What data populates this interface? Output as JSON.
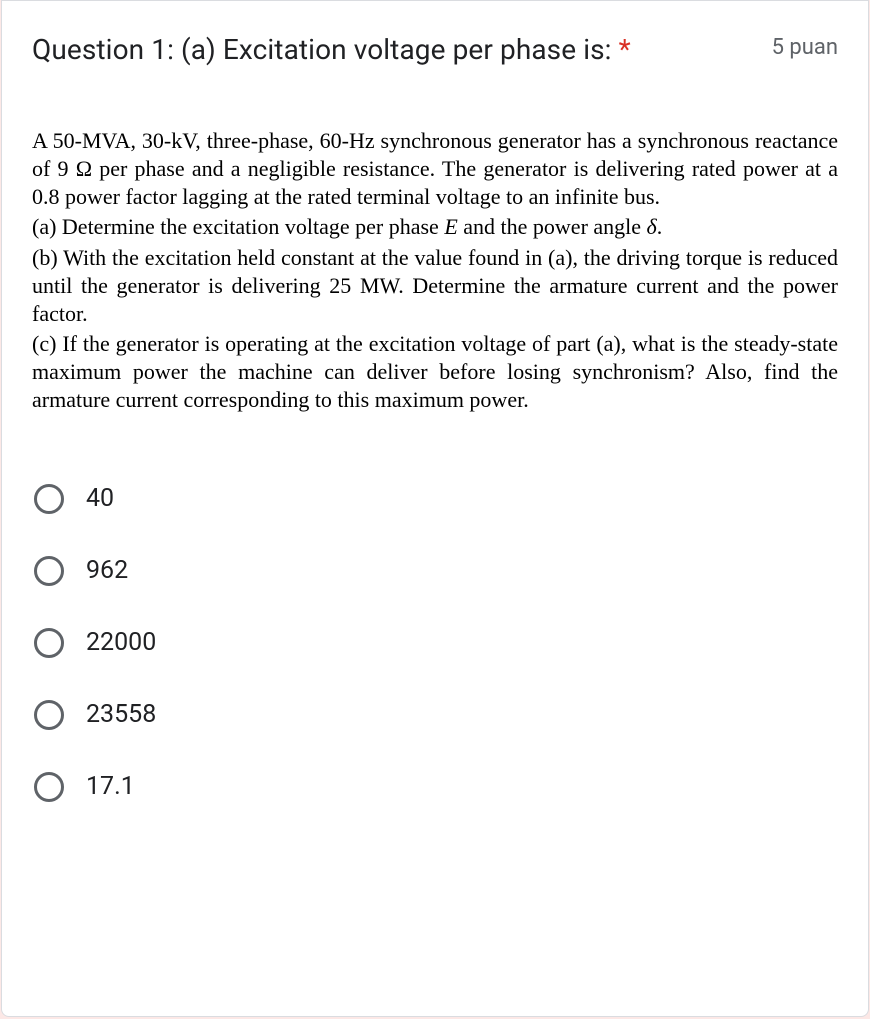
{
  "card": {
    "background_color": "#ffffff",
    "border_color": "#dadce0",
    "border_radius": 8
  },
  "page_background_color": "#fce8e6",
  "question": {
    "title": "Question 1: (a) Excitation voltage per phase is:",
    "required_mark": "*",
    "points_label": "5 puan",
    "title_fontsize": 28,
    "title_color": "#202124",
    "points_color": "#5f6368",
    "required_color": "#d93025"
  },
  "problem": {
    "font_family": "Times New Roman",
    "fontsize": 22,
    "color": "#000000",
    "intro": "A 50-MVA, 30-kV, three-phase, 60-Hz synchronous generator has a synchronous reactance of 9 Ω per phase and a negligible resistance. The generator is delivering rated power at a 0.8 power factor lagging at the rated terminal voltage to an infinite bus.",
    "part_a_prefix": "(a) Determine the excitation voltage per phase ",
    "part_a_var": "E",
    "part_a_mid": " and the power angle ",
    "part_a_delta": "δ",
    "part_a_suffix": ".",
    "part_b": "(b) With the excitation held constant at the value found in (a), the driving torque is reduced until the generator is delivering 25 MW. Determine the armature current and the power factor.",
    "part_c": "(c) If the generator is operating at the excitation voltage of part (a), what is the steady-state maximum power the machine can deliver before losing synchronism? Also, find the armature current corresponding to this maximum power."
  },
  "options": {
    "radio_border_color": "#5f6368",
    "radio_size": 30,
    "label_fontsize": 25,
    "label_color": "#202124",
    "items": [
      {
        "label": "40"
      },
      {
        "label": "962"
      },
      {
        "label": "22000"
      },
      {
        "label": "23558"
      },
      {
        "label": "17.1"
      }
    ]
  }
}
